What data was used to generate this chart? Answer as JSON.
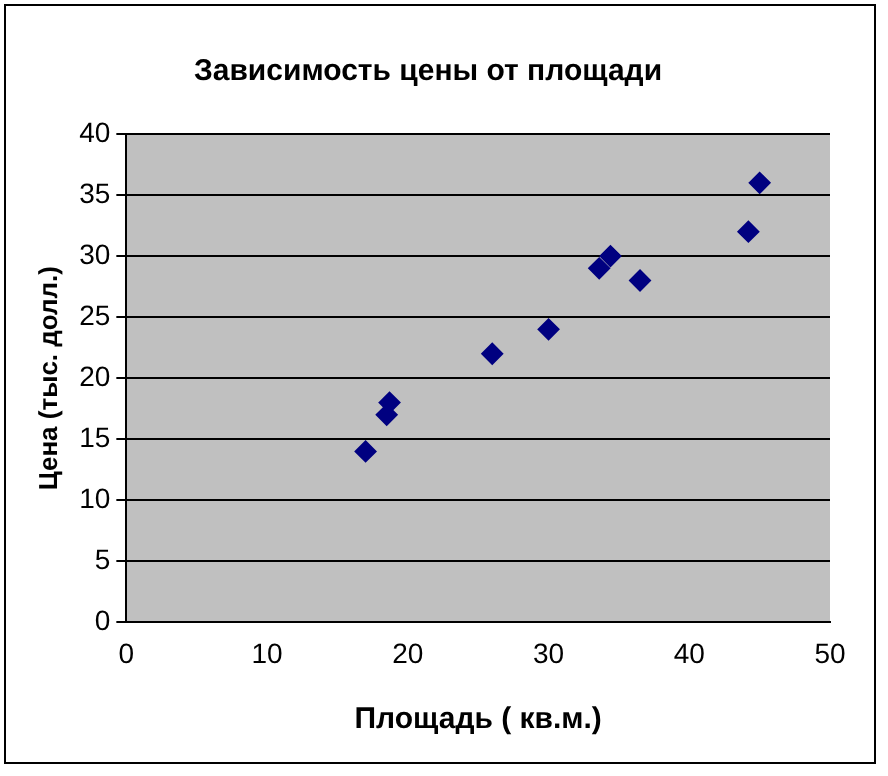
{
  "chart_data": {
    "type": "scatter",
    "title": "Зависимость цены от площади",
    "xlabel": "Площадь ( кв.м.)",
    "ylabel": "Цена (тыс. долл.)",
    "series": [
      {
        "color": "#000080",
        "x": [
          17,
          18.5,
          18.7,
          26,
          30,
          33.6,
          34.4,
          36.5,
          44.2,
          45
        ],
        "values": [
          14,
          17,
          18,
          22,
          24,
          29,
          30,
          28,
          32,
          36
        ]
      }
    ],
    "xlim": [
      0,
      50
    ],
    "xticks": [
      0,
      10,
      20,
      30,
      40,
      50
    ],
    "ylim": [
      0,
      40
    ],
    "yticks": [
      0,
      5,
      10,
      15,
      20,
      25,
      30,
      35,
      40
    ],
    "grid": "y",
    "legend": false,
    "marker": "diamond"
  }
}
